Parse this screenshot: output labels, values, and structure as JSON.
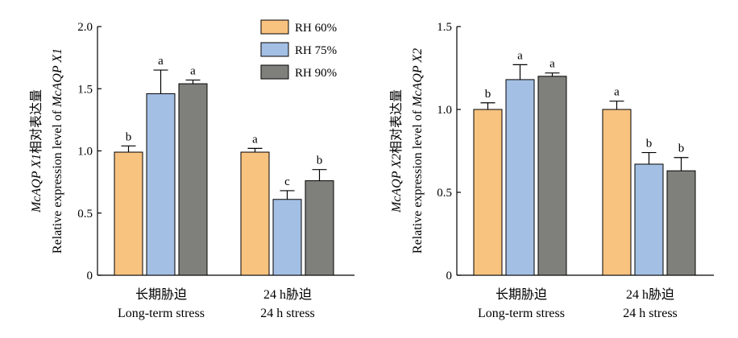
{
  "colors": {
    "RH 60%": "#f8c27f",
    "RH 75%": "#a3bfe4",
    "RH 90%": "#7f807b"
  },
  "legend": [
    "RH 60%",
    "RH 75%",
    "RH 90%"
  ],
  "chart_data": [
    {
      "type": "bar",
      "ylabel_line1_italic": "McAQP X1",
      "ylabel_line1_cn": "相对表达量",
      "ylabel_line2_plain": "Relative expression level of ",
      "ylabel_line2_italic": "McAQP X1",
      "ylim": [
        0,
        2.0
      ],
      "yticks": [
        "0",
        "0.5",
        "1.0",
        "1.5",
        "2.0"
      ],
      "ytick_values": [
        0,
        0.5,
        1.0,
        1.5,
        2.0
      ],
      "categories": [
        {
          "cn": "长期胁迫",
          "en": "Long-term stress"
        },
        {
          "cn": "24 h胁迫",
          "en": "24 h stress"
        }
      ],
      "series": [
        {
          "name": "RH 60%",
          "values": [
            0.99,
            0.99
          ],
          "errors": [
            0.05,
            0.03
          ],
          "letters": [
            "b",
            "a"
          ]
        },
        {
          "name": "RH 75%",
          "values": [
            1.46,
            0.61
          ],
          "errors": [
            0.19,
            0.07
          ],
          "letters": [
            "a",
            "c"
          ]
        },
        {
          "name": "RH 90%",
          "values": [
            1.54,
            0.76
          ],
          "errors": [
            0.03,
            0.09
          ],
          "letters": [
            "a",
            "b"
          ]
        }
      ],
      "legend_position": "top-right"
    },
    {
      "type": "bar",
      "ylabel_line1_italic": "McAQP X2",
      "ylabel_line1_cn": "相对表达量",
      "ylabel_line2_plain": "Relative expression level of ",
      "ylabel_line2_italic": "McAQP X2",
      "ylim": [
        0,
        1.5
      ],
      "yticks": [
        "0",
        "0.5",
        "1.0",
        "1.5"
      ],
      "ytick_values": [
        0,
        0.5,
        1.0,
        1.5
      ],
      "categories": [
        {
          "cn": "长期胁迫",
          "en": "Long-term stress"
        },
        {
          "cn": "24 h胁迫",
          "en": "24 h stress"
        }
      ],
      "series": [
        {
          "name": "RH 60%",
          "values": [
            1.0,
            1.0
          ],
          "errors": [
            0.04,
            0.05
          ],
          "letters": [
            "b",
            "a"
          ]
        },
        {
          "name": "RH 75%",
          "values": [
            1.18,
            0.67
          ],
          "errors": [
            0.09,
            0.07
          ],
          "letters": [
            "a",
            "b"
          ]
        },
        {
          "name": "RH 90%",
          "values": [
            1.2,
            0.63
          ],
          "errors": [
            0.02,
            0.08
          ],
          "letters": [
            "a",
            "b"
          ]
        }
      ]
    }
  ]
}
